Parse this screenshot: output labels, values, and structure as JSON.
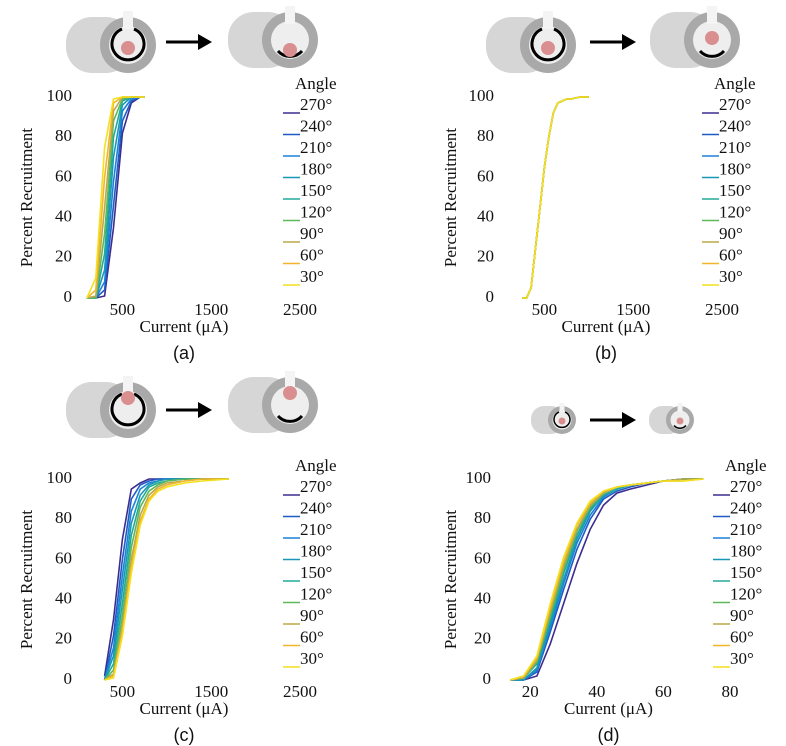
{
  "chart_data": [
    {
      "type": "line",
      "caption": "(a)",
      "xlabel": "Current (μA)",
      "ylabel": "Percent Recruitment",
      "legend_title": "Angle",
      "xlim": [
        0,
        2500
      ],
      "ylim": [
        0,
        100
      ],
      "xticks": [
        500,
        1500,
        2500
      ],
      "yticks": [
        0,
        20,
        40,
        60,
        80,
        100
      ],
      "x": [
        100,
        200,
        300,
        400,
        500,
        600,
        700,
        750
      ],
      "series": [
        {
          "name": "270°",
          "color": "#3b2d8f",
          "values": [
            0,
            0,
            1,
            35,
            82,
            97,
            100,
            100
          ]
        },
        {
          "name": "240°",
          "color": "#1f5bc4",
          "values": [
            0,
            0,
            4,
            46,
            88,
            98,
            100,
            100
          ]
        },
        {
          "name": "210°",
          "color": "#1a82d8",
          "values": [
            0,
            0,
            8,
            58,
            93,
            99,
            100,
            100
          ]
        },
        {
          "name": "180°",
          "color": "#1998b5",
          "values": [
            0,
            0,
            14,
            70,
            96,
            100,
            100,
            100
          ]
        },
        {
          "name": "150°",
          "color": "#22aa98",
          "values": [
            0,
            0,
            22,
            80,
            98,
            100,
            100,
            100
          ]
        },
        {
          "name": "120°",
          "color": "#5db85a",
          "values": [
            0,
            0,
            32,
            88,
            99,
            100,
            100,
            100
          ]
        },
        {
          "name": "90°",
          "color": "#bba84a",
          "values": [
            0,
            1,
            45,
            93,
            100,
            100,
            100,
            100
          ]
        },
        {
          "name": "60°",
          "color": "#f2b62a",
          "values": [
            0,
            4,
            60,
            97,
            100,
            100,
            100,
            100
          ]
        },
        {
          "name": "30°",
          "color": "#f4e01c",
          "values": [
            0,
            10,
            75,
            99,
            100,
            100,
            100,
            100
          ]
        }
      ]
    },
    {
      "type": "line",
      "caption": "(b)",
      "xlabel": "Current (μA)",
      "ylabel": "Percent Recruitment",
      "legend_title": "Angle",
      "xlim": [
        0,
        2500
      ],
      "ylim": [
        0,
        100
      ],
      "xticks": [
        500,
        1500,
        2500
      ],
      "yticks": [
        0,
        20,
        40,
        60,
        80,
        100
      ],
      "x": [
        250,
        300,
        350,
        400,
        450,
        500,
        550,
        600,
        650,
        700,
        750,
        800,
        900,
        1000
      ],
      "series": [
        {
          "name": "270°",
          "color": "#3b2d8f",
          "values": [
            0,
            0,
            5,
            25,
            45,
            65,
            80,
            92,
            97,
            98,
            99,
            99,
            100,
            100
          ]
        },
        {
          "name": "240°",
          "color": "#1f5bc4",
          "values": [
            0,
            0,
            5,
            25,
            45,
            65,
            80,
            92,
            97,
            98,
            99,
            99,
            100,
            100
          ]
        },
        {
          "name": "210°",
          "color": "#1a82d8",
          "values": [
            0,
            0,
            5,
            25,
            45,
            65,
            80,
            92,
            97,
            98,
            99,
            99,
            100,
            100
          ]
        },
        {
          "name": "180°",
          "color": "#1998b5",
          "values": [
            0,
            0,
            5,
            25,
            45,
            65,
            80,
            92,
            97,
            98,
            99,
            99,
            100,
            100
          ]
        },
        {
          "name": "150°",
          "color": "#22aa98",
          "values": [
            0,
            0,
            5,
            25,
            45,
            65,
            80,
            92,
            97,
            98,
            99,
            99,
            100,
            100
          ]
        },
        {
          "name": "120°",
          "color": "#5db85a",
          "values": [
            0,
            0,
            5,
            25,
            45,
            65,
            80,
            92,
            97,
            98,
            99,
            99,
            100,
            100
          ]
        },
        {
          "name": "90°",
          "color": "#bba84a",
          "values": [
            0,
            0,
            5,
            25,
            45,
            65,
            80,
            92,
            97,
            98,
            99,
            99,
            100,
            100
          ]
        },
        {
          "name": "60°",
          "color": "#f2b62a",
          "values": [
            0,
            0,
            5,
            25,
            45,
            65,
            80,
            92,
            97,
            98,
            99,
            99,
            100,
            100
          ]
        },
        {
          "name": "30°",
          "color": "#f4e01c",
          "values": [
            0,
            0,
            5,
            25,
            45,
            65,
            80,
            92,
            97,
            98,
            99,
            99,
            100,
            100
          ]
        }
      ]
    },
    {
      "type": "line",
      "caption": "(c)",
      "xlabel": "Current (μA)",
      "ylabel": "Percent Recruitment",
      "legend_title": "Angle",
      "xlim": [
        0,
        2500
      ],
      "ylim": [
        0,
        100
      ],
      "xticks": [
        500,
        1500,
        2500
      ],
      "yticks": [
        0,
        20,
        40,
        60,
        80,
        100
      ],
      "x": [
        300,
        400,
        500,
        600,
        700,
        800,
        900,
        1000,
        1200,
        1400,
        1700
      ],
      "series": [
        {
          "name": "270°",
          "color": "#3b2d8f",
          "values": [
            2,
            30,
            70,
            95,
            98,
            100,
            100,
            100,
            100,
            100,
            100
          ]
        },
        {
          "name": "240°",
          "color": "#1f5bc4",
          "values": [
            0,
            22,
            60,
            90,
            97,
            99,
            100,
            100,
            100,
            100,
            100
          ]
        },
        {
          "name": "210°",
          "color": "#1a82d8",
          "values": [
            0,
            16,
            52,
            84,
            95,
            98,
            99,
            100,
            100,
            100,
            100
          ]
        },
        {
          "name": "180°",
          "color": "#1998b5",
          "values": [
            0,
            12,
            45,
            78,
            92,
            97,
            99,
            100,
            100,
            100,
            100
          ]
        },
        {
          "name": "150°",
          "color": "#22aa98",
          "values": [
            0,
            8,
            38,
            72,
            89,
            96,
            98,
            99,
            100,
            100,
            100
          ]
        },
        {
          "name": "120°",
          "color": "#5db85a",
          "values": [
            0,
            5,
            32,
            66,
            86,
            94,
            97,
            99,
            100,
            100,
            100
          ]
        },
        {
          "name": "90°",
          "color": "#bba84a",
          "values": [
            0,
            3,
            27,
            60,
            82,
            92,
            96,
            98,
            99,
            100,
            100
          ]
        },
        {
          "name": "60°",
          "color": "#f2b62a",
          "values": [
            0,
            2,
            24,
            56,
            79,
            90,
            95,
            97,
            99,
            100,
            100
          ]
        },
        {
          "name": "30°",
          "color": "#f4e01c",
          "values": [
            0,
            1,
            22,
            53,
            77,
            89,
            94,
            96,
            98,
            99,
            100
          ]
        }
      ]
    },
    {
      "type": "line",
      "caption": "(d)",
      "xlabel": "Current (μA)",
      "ylabel": "Percent Recruitment",
      "legend_title": "Angle",
      "xlim": [
        10,
        80
      ],
      "ylim": [
        0,
        100
      ],
      "xticks": [
        20,
        40,
        60,
        80
      ],
      "yticks": [
        0,
        20,
        40,
        60,
        80,
        100
      ],
      "x": [
        14,
        18,
        22,
        26,
        30,
        34,
        38,
        42,
        46,
        50,
        55,
        60,
        66,
        72
      ],
      "series": [
        {
          "name": "270°",
          "color": "#3b2d8f",
          "values": [
            0,
            0,
            2,
            18,
            38,
            58,
            75,
            87,
            93,
            95,
            97,
            99,
            100,
            100
          ]
        },
        {
          "name": "240°",
          "color": "#1f5bc4",
          "values": [
            0,
            0,
            4,
            24,
            45,
            65,
            80,
            90,
            94,
            96,
            98,
            99,
            100,
            100
          ]
        },
        {
          "name": "210°",
          "color": "#1a82d8",
          "values": [
            0,
            0,
            5,
            26,
            48,
            68,
            82,
            91,
            95,
            97,
            98,
            99,
            100,
            100
          ]
        },
        {
          "name": "180°",
          "color": "#1998b5",
          "values": [
            0,
            0,
            6,
            28,
            50,
            70,
            84,
            92,
            95,
            97,
            98,
            99,
            100,
            100
          ]
        },
        {
          "name": "150°",
          "color": "#22aa98",
          "values": [
            0,
            1,
            8,
            30,
            53,
            72,
            85,
            92,
            95,
            97,
            98,
            99,
            100,
            100
          ]
        },
        {
          "name": "120°",
          "color": "#5db85a",
          "values": [
            0,
            1,
            9,
            32,
            55,
            74,
            86,
            93,
            96,
            97,
            98,
            99,
            100,
            100
          ]
        },
        {
          "name": "90°",
          "color": "#bba84a",
          "values": [
            0,
            1,
            10,
            34,
            57,
            75,
            87,
            93,
            96,
            97,
            98,
            99,
            100,
            100
          ]
        },
        {
          "name": "60°",
          "color": "#f2b62a",
          "values": [
            0,
            2,
            11,
            36,
            59,
            77,
            88,
            94,
            96,
            97,
            98,
            99,
            99,
            100
          ]
        },
        {
          "name": "30°",
          "color": "#f4e01c",
          "values": [
            0,
            2,
            12,
            38,
            61,
            78,
            89,
            94,
            96,
            97,
            98,
            99,
            99,
            100
          ]
        }
      ]
    }
  ]
}
